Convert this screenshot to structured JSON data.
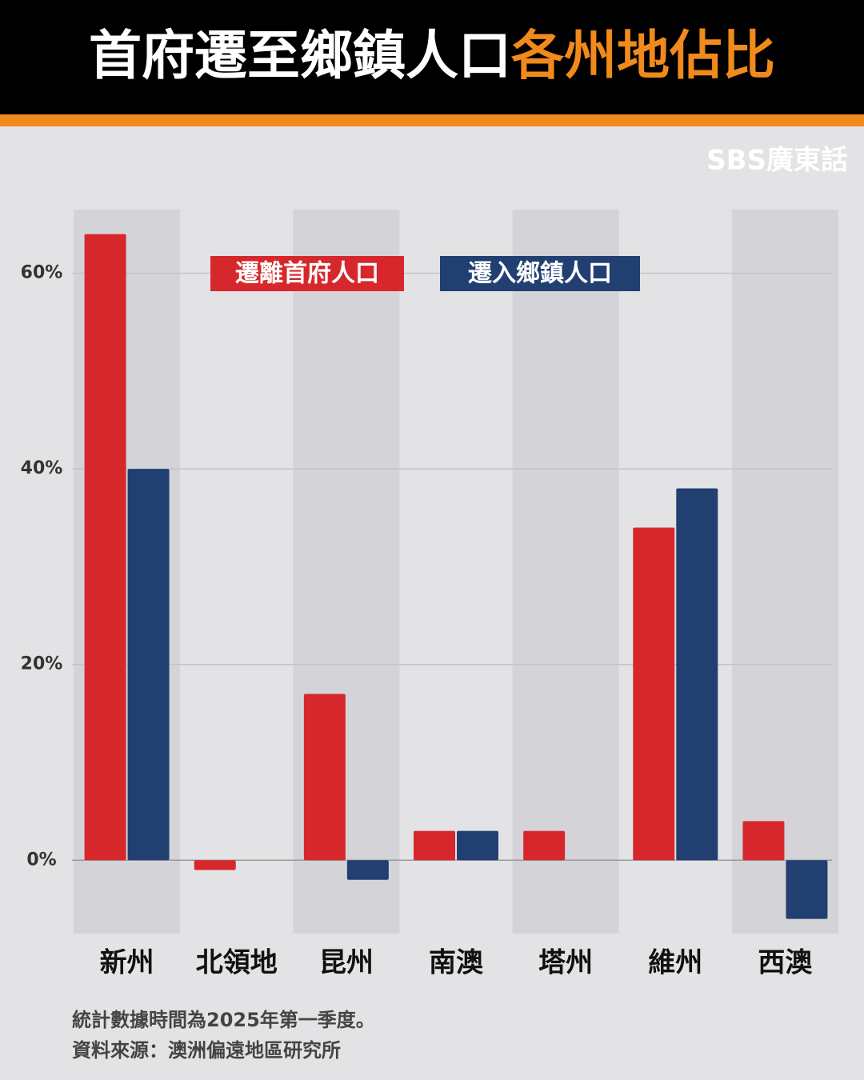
{
  "title": "首府遷至鄉鎮人口",
  "title_highlight": "各州地佔比",
  "brand": "SBS廣東話",
  "chart_data": {
    "type": "bar",
    "categories": [
      "新州",
      "北領地",
      "昆州",
      "南澳",
      "塔州",
      "維州",
      "西澳"
    ],
    "series": [
      {
        "name": "遷離首府人口",
        "color": "#d6282c",
        "values": [
          64,
          -1,
          17,
          3,
          3,
          34,
          4
        ]
      },
      {
        "name": "遷入鄉鎮人口",
        "color": "#223f72",
        "values": [
          40,
          null,
          -2,
          3,
          null,
          38,
          -6
        ]
      }
    ],
    "ylim": [
      -7.5,
      66.5
    ],
    "yticks": [
      {
        "value": 0,
        "label": "0%"
      },
      {
        "value": 20,
        "label": "20%"
      },
      {
        "value": 40,
        "label": "40%"
      },
      {
        "value": 60,
        "label": "60%"
      }
    ],
    "grid": true
  },
  "notes": [
    "統計數據時間為2025年第一季度。",
    "資料來源：澳洲偏遠地區研究所"
  ]
}
